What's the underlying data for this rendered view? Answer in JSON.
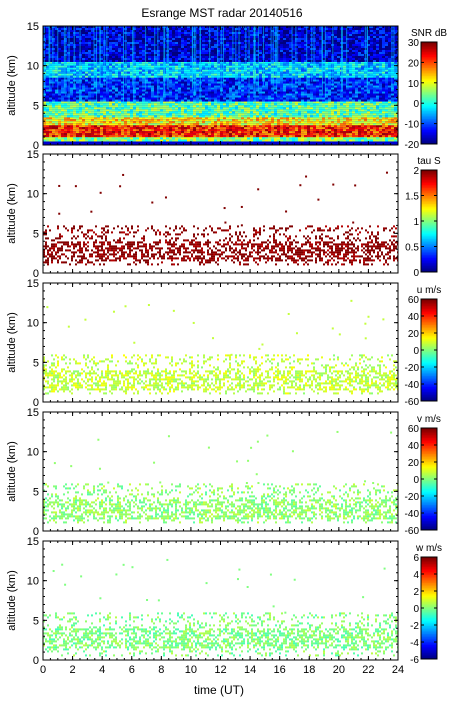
{
  "figure": {
    "title": "Esrange MST radar 20140516",
    "xlabel": "time (UT)",
    "x_ticks": [
      0,
      2,
      4,
      6,
      8,
      10,
      12,
      14,
      16,
      18,
      20,
      22,
      24
    ],
    "xlim": [
      0,
      24
    ]
  },
  "chart_data": [
    {
      "type": "heatmap",
      "name": "snr",
      "ylabel": "altitude (km)",
      "ylim": [
        0,
        15
      ],
      "y_ticks": [
        0,
        5,
        10,
        15
      ],
      "colorbar": {
        "label": "SNR dB",
        "range": [
          -20,
          30
        ],
        "ticks": [
          30,
          20,
          10,
          0,
          -10,
          -20
        ]
      },
      "layers": [
        {
          "alt_range": [
            0.5,
            1.2
          ],
          "value": 5
        },
        {
          "alt_range": [
            1.2,
            2.5
          ],
          "value": 22
        },
        {
          "alt_range": [
            2.5,
            3.5
          ],
          "value": 12
        },
        {
          "alt_range": [
            3.5,
            5.5
          ],
          "value": 3
        },
        {
          "alt_range": [
            5.5,
            8.5
          ],
          "value": -12
        },
        {
          "alt_range": [
            8.5,
            10.5
          ],
          "value": -3
        },
        {
          "alt_range": [
            10.5,
            15
          ],
          "value": -16
        }
      ]
    },
    {
      "type": "heatmap",
      "name": "tau",
      "ylabel": "altitude (km)",
      "ylim": [
        0,
        15
      ],
      "y_ticks": [
        0,
        5,
        10,
        15
      ],
      "colorbar": {
        "label": "tau S",
        "range": [
          0,
          2
        ],
        "ticks": [
          2,
          1.5,
          1,
          0.5,
          0
        ]
      },
      "data_region": {
        "alt_range": [
          1,
          6
        ],
        "value": 2
      }
    },
    {
      "type": "heatmap",
      "name": "u",
      "ylabel": "altitude (km)",
      "ylim": [
        0,
        15
      ],
      "y_ticks": [
        0,
        5,
        10,
        15
      ],
      "colorbar": {
        "label": "u m/s",
        "range": [
          -60,
          60
        ],
        "ticks": [
          60,
          40,
          20,
          0,
          -20,
          -40,
          -60
        ]
      },
      "data_region": {
        "alt_range": [
          1,
          6
        ],
        "value": 8
      }
    },
    {
      "type": "heatmap",
      "name": "v",
      "ylabel": "altitude (km)",
      "ylim": [
        0,
        15
      ],
      "y_ticks": [
        0,
        5,
        10,
        15
      ],
      "colorbar": {
        "label": "v m/s",
        "range": [
          -60,
          60
        ],
        "ticks": [
          60,
          40,
          20,
          0,
          -20,
          -40,
          -60
        ]
      },
      "data_region": {
        "alt_range": [
          1,
          6
        ],
        "value": 2
      }
    },
    {
      "type": "heatmap",
      "name": "w",
      "ylabel": "altitude (km)",
      "ylim": [
        0,
        15
      ],
      "y_ticks": [
        0,
        5,
        10,
        15
      ],
      "colorbar": {
        "label": "w m/s",
        "range": [
          -6,
          6
        ],
        "ticks": [
          6,
          4,
          2,
          0,
          -2,
          -4,
          -6
        ]
      },
      "data_region": {
        "alt_range": [
          0.5,
          6
        ],
        "value": 0
      }
    }
  ]
}
